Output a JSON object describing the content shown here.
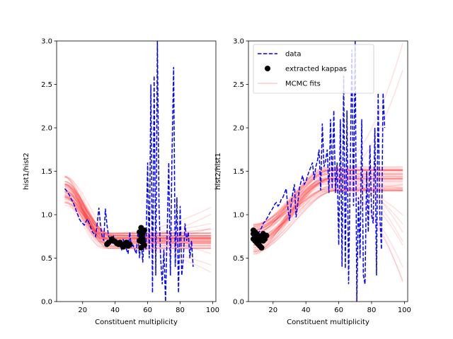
{
  "chart_data": [
    {
      "type": "line",
      "xlabel": "Constituent multiplicity",
      "ylabel": "hist1/hist2",
      "xlim": [
        4,
        102
      ],
      "ylim": [
        0,
        3.0
      ],
      "xticks": [
        20,
        40,
        60,
        80,
        100
      ],
      "yticks": [
        0.0,
        0.5,
        1.0,
        1.5,
        2.0,
        2.5,
        3.0
      ],
      "xtick_labels": [
        "20",
        "40",
        "60",
        "80",
        "100"
      ],
      "ytick_labels": [
        "0.0",
        "0.5",
        "1.0",
        "1.5",
        "2.0",
        "2.5",
        "3.0"
      ],
      "grid": false,
      "legend": null,
      "series": [
        {
          "name": "data",
          "style": "dashed",
          "color": "#0000ff",
          "x": [
            9,
            10,
            11,
            12,
            13,
            14,
            15,
            16,
            17,
            18,
            19,
            20,
            21,
            22,
            23,
            24,
            25,
            26,
            27,
            28,
            29,
            30,
            31,
            32,
            33,
            34,
            35,
            36,
            37,
            38,
            39,
            40,
            41,
            42,
            43,
            44,
            45,
            46,
            47,
            48,
            49,
            50,
            51,
            52,
            53,
            54,
            55,
            56,
            57,
            58,
            59,
            60,
            61,
            62,
            63,
            64,
            65,
            66,
            67,
            68,
            69,
            70,
            71,
            72,
            73,
            74,
            75,
            76,
            77,
            78,
            79,
            80,
            81,
            82,
            83,
            84,
            85,
            86,
            87,
            88
          ],
          "y": [
            1.3,
            1.28,
            1.25,
            1.22,
            1.18,
            1.15,
            1.1,
            1.05,
            1.0,
            0.95,
            0.92,
            0.9,
            0.88,
            0.92,
            0.95,
            0.9,
            0.85,
            0.8,
            0.78,
            0.75,
            0.9,
            1.08,
            0.88,
            0.75,
            0.7,
            1.07,
            0.88,
            0.75,
            0.72,
            0.68,
            0.75,
            0.7,
            0.68,
            0.66,
            0.64,
            0.6,
            0.72,
            0.63,
            0.6,
            0.55,
            0.8,
            0.62,
            0.65,
            0.6,
            0.55,
            0.8,
            0.5,
            0.75,
            0.45,
            0.8,
            0.6,
            1.6,
            0.5,
            2.5,
            0.1,
            2.6,
            0.3,
            3.0,
            1.1,
            0.5,
            0.2,
            0.6,
            0.0,
            0.8,
            1.6,
            0.3,
            1.7,
            2.7,
            0.4,
            1.2,
            0.1,
            1.1,
            0.3,
            0.5,
            0.9,
            0.7,
            0.8,
            0.5,
            0.7,
            0.4
          ]
        }
      ],
      "kappas": {
        "name": "extracted kappas",
        "color": "#000000",
        "x": [
          35,
          36,
          38,
          39,
          40,
          41,
          42,
          43,
          44,
          45,
          46,
          47,
          48,
          49,
          55,
          55,
          56,
          56,
          56,
          57,
          57,
          57,
          58,
          58
        ],
        "y": [
          0.66,
          0.68,
          0.72,
          0.7,
          0.69,
          0.67,
          0.66,
          0.68,
          0.65,
          0.63,
          0.66,
          0.68,
          0.64,
          0.66,
          0.7,
          0.8,
          0.62,
          0.75,
          0.85,
          0.68,
          0.78,
          0.72,
          0.65,
          0.82
        ]
      },
      "mcmc": {
        "name": "MCMC fits",
        "color": "#ff0000",
        "x_start": 9,
        "x_end": 99,
        "y_start": 1.28,
        "y_plateau": 0.7,
        "plateau_at": 35
      }
    },
    {
      "type": "line",
      "xlabel": "Constituent multiplicity",
      "ylabel": "hist2/hist1",
      "xlim": [
        5,
        102
      ],
      "ylim": [
        0,
        3.0
      ],
      "xticks": [
        20,
        40,
        60,
        80,
        100
      ],
      "yticks": [
        0.0,
        0.5,
        1.0,
        1.5,
        2.0,
        2.5,
        3.0
      ],
      "xtick_labels": [
        "20",
        "40",
        "60",
        "80",
        "100"
      ],
      "ytick_labels": [
        "0.0",
        "0.5",
        "1.0",
        "1.5",
        "2.0",
        "2.5",
        "3.0"
      ],
      "grid": false,
      "legend": "upper left",
      "legend_entries": [
        {
          "label": "data",
          "kind": "dashed-line",
          "color": "#0000ff"
        },
        {
          "label": "extracted kappas",
          "kind": "marker",
          "color": "#000000"
        },
        {
          "label": "MCMC fits",
          "kind": "solid-line",
          "color": "#ff0000"
        }
      ],
      "series": [
        {
          "name": "data",
          "style": "dashed",
          "color": "#0000ff",
          "x": [
            9,
            10,
            11,
            12,
            13,
            14,
            15,
            16,
            17,
            18,
            19,
            20,
            21,
            22,
            23,
            24,
            25,
            26,
            27,
            28,
            29,
            30,
            31,
            32,
            33,
            34,
            35,
            36,
            37,
            38,
            39,
            40,
            41,
            42,
            43,
            44,
            45,
            46,
            47,
            48,
            49,
            50,
            51,
            52,
            53,
            54,
            55,
            56,
            57,
            58,
            59,
            60,
            61,
            62,
            63,
            64,
            65,
            66,
            67,
            68,
            69,
            70,
            71,
            72,
            73,
            74,
            75,
            76,
            77,
            78,
            79,
            80,
            81,
            82,
            83,
            84,
            85,
            86,
            87,
            88
          ],
          "y": [
            0.72,
            0.75,
            0.78,
            0.82,
            0.85,
            0.9,
            0.92,
            0.95,
            0.98,
            1.02,
            1.05,
            1.08,
            1.12,
            1.14,
            1.1,
            1.12,
            1.18,
            1.2,
            1.25,
            1.3,
            1.08,
            0.93,
            1.12,
            1.25,
            1.35,
            0.97,
            1.12,
            1.3,
            1.38,
            1.45,
            1.35,
            1.38,
            1.45,
            1.5,
            1.55,
            1.6,
            1.4,
            1.55,
            1.62,
            1.75,
            1.28,
            2.05,
            1.55,
            1.62,
            1.75,
            1.25,
            2.1,
            1.3,
            2.2,
            1.25,
            1.6,
            0.65,
            2.1,
            0.4,
            2.6,
            0.38,
            2.2,
            0.2,
            1.5,
            2.9,
            1.1,
            3.0,
            0.0,
            1.2,
            0.5,
            2.1,
            0.3,
            0.2,
            1.5,
            0.8,
            1.8,
            1.0,
            0.9,
            2.0,
            0.3,
            2.4,
            1.0,
            0.6,
            2.4,
            2.0
          ]
        }
      ],
      "kappas": {
        "name": "extracted kappas",
        "color": "#000000",
        "x": [
          8,
          8,
          8,
          9,
          9,
          9,
          10,
          10,
          10,
          11,
          11,
          11,
          12,
          12,
          13,
          13,
          14,
          14,
          15,
          16
        ],
        "y": [
          0.72,
          0.78,
          0.82,
          0.7,
          0.76,
          0.8,
          0.68,
          0.74,
          0.78,
          0.66,
          0.72,
          0.76,
          0.64,
          0.7,
          0.62,
          0.74,
          0.7,
          0.78,
          0.72,
          0.76
        ]
      },
      "mcmc": {
        "name": "MCMC fits",
        "color": "#ff0000",
        "x_start": 8,
        "x_end": 99,
        "y_start": 0.72,
        "y_plateau": 1.42,
        "plateau_at": 55
      }
    }
  ]
}
